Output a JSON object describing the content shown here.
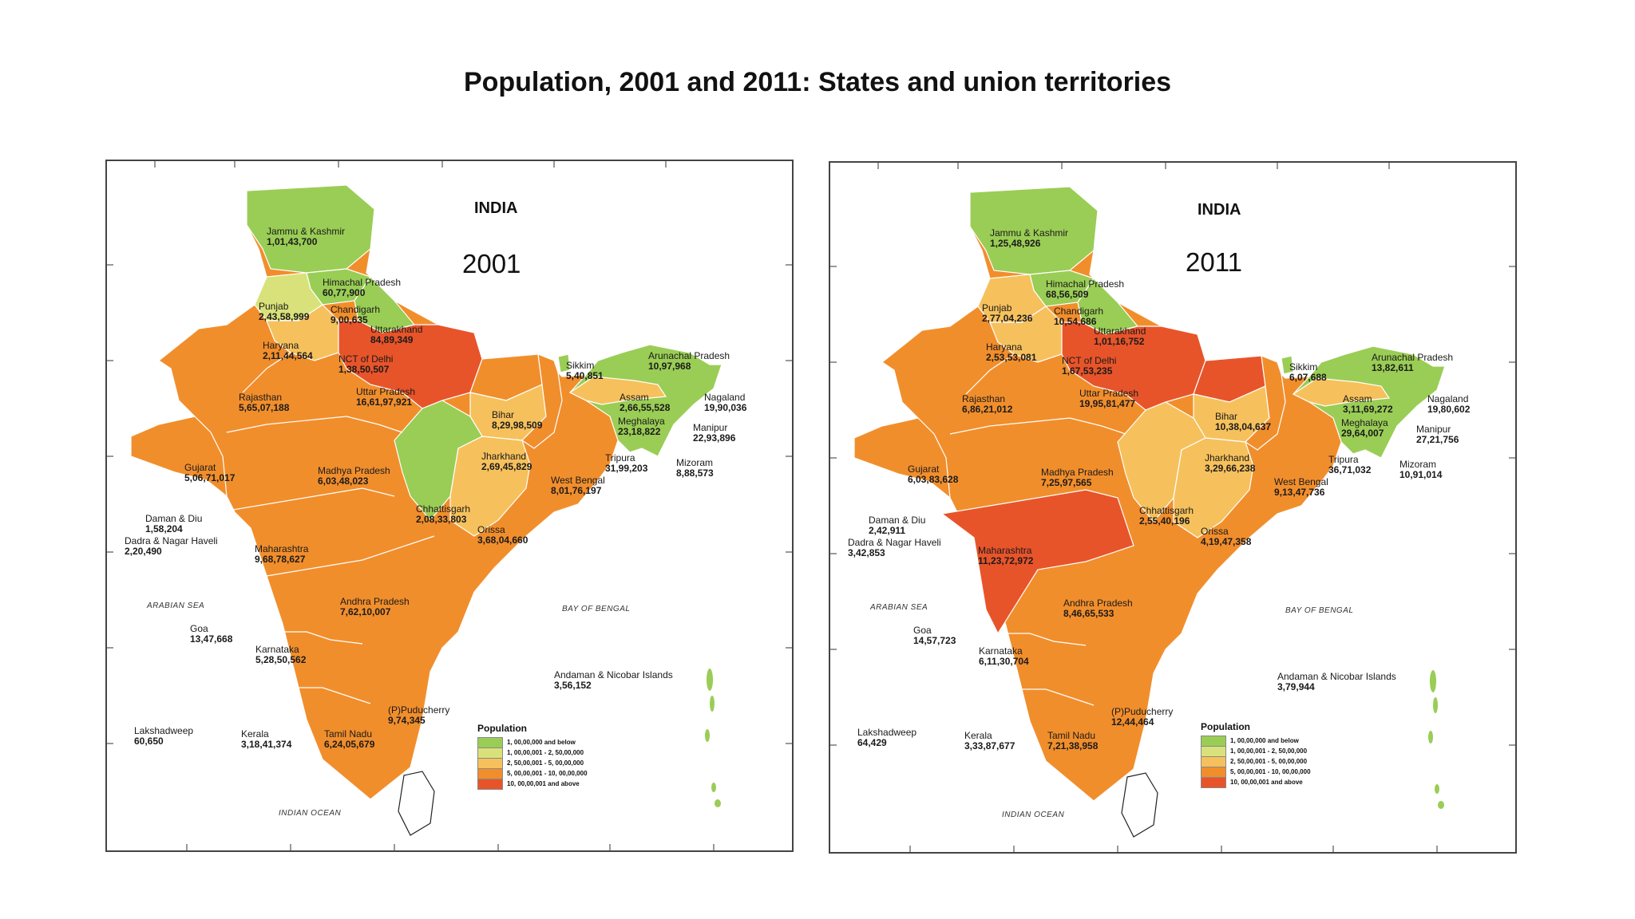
{
  "title": "Population, 2001 and 2011: States and union territories",
  "colors": {
    "level1": "#9acd55",
    "level2": "#d9e27a",
    "level3": "#f6c15c",
    "level4": "#f18e2c",
    "level5": "#e8542a",
    "border": "#ffffff",
    "frame": "#444444"
  },
  "maps": [
    {
      "heading": "INDIA",
      "year": "2001",
      "legend": {
        "title": "Population",
        "items": [
          "1, 00,00,000 and below",
          "1, 00,00,001 - 2, 50,00,000",
          "2, 50,00,001 - 5, 00,00,000",
          "5, 00,00,001 - 10, 00,00,000",
          "10, 00,00,001 and above"
        ]
      },
      "seas": [
        "ARABIAN SEA",
        "BAY OF BENGAL",
        "INDIAN OCEAN"
      ],
      "regions": [
        {
          "name": "Jammu & Kashmir",
          "value": "1,01,43,700"
        },
        {
          "name": "Himachal Pradesh",
          "value": "60,77,900"
        },
        {
          "name": "Punjab",
          "value": "2,43,58,999"
        },
        {
          "name": "Chandigarh",
          "value": "9,00,635"
        },
        {
          "name": "Uttarakhand",
          "value": "84,89,349"
        },
        {
          "name": "Haryana",
          "value": "2,11,44,564"
        },
        {
          "name": "NCT of Delhi",
          "value": "1,38,50,507"
        },
        {
          "name": "Sikkim",
          "value": "5,40,851"
        },
        {
          "name": "Arunachal Pradesh",
          "value": "10,97,968"
        },
        {
          "name": "Rajasthan",
          "value": "5,65,07,188"
        },
        {
          "name": "Uttar Pradesh",
          "value": "16,61,97,921"
        },
        {
          "name": "Assam",
          "value": "2,66,55,528"
        },
        {
          "name": "Nagaland",
          "value": "19,90,036"
        },
        {
          "name": "Bihar",
          "value": "8,29,98,509"
        },
        {
          "name": "Meghalaya",
          "value": "23,18,822"
        },
        {
          "name": "Manipur",
          "value": "22,93,896"
        },
        {
          "name": "Jharkhand",
          "value": "2,69,45,829"
        },
        {
          "name": "Tripura",
          "value": "31,99,203"
        },
        {
          "name": "Mizoram",
          "value": "8,88,573"
        },
        {
          "name": "Gujarat",
          "value": "5,06,71,017"
        },
        {
          "name": "Madhya Pradesh",
          "value": "6,03,48,023"
        },
        {
          "name": "West Bengal",
          "value": "8,01,76,197"
        },
        {
          "name": "Daman & Diu",
          "value": "1,58,204"
        },
        {
          "name": "Chhattisgarh",
          "value": "2,08,33,803"
        },
        {
          "name": "Dadra & Nagar Haveli",
          "value": "2,20,490"
        },
        {
          "name": "Orissa",
          "value": "3,68,04,660"
        },
        {
          "name": "Maharashtra",
          "value": "9,68,78,627"
        },
        {
          "name": "Andhra Pradesh",
          "value": "7,62,10,007"
        },
        {
          "name": "Goa",
          "value": "13,47,668"
        },
        {
          "name": "Karnataka",
          "value": "5,28,50,562"
        },
        {
          "name": "Andaman & Nicobar Islands",
          "value": "3,56,152"
        },
        {
          "name": "(P)Puducherry",
          "value": "9,74,345"
        },
        {
          "name": "Lakshadweep",
          "value": "60,650"
        },
        {
          "name": "Kerala",
          "value": "3,18,41,374"
        },
        {
          "name": "Tamil Nadu",
          "value": "6,24,05,679"
        }
      ]
    },
    {
      "heading": "INDIA",
      "year": "2011",
      "legend": {
        "title": "Population",
        "items": [
          "1, 00,00,000 and below",
          "1, 00,00,001 - 2, 50,00,000",
          "2, 50,00,001 - 5, 00,00,000",
          "5, 00,00,001 - 10, 00,00,000",
          "10, 00,00,001 and above"
        ]
      },
      "seas": [
        "ARABIAN SEA",
        "BAY OF BENGAL",
        "INDIAN OCEAN"
      ],
      "regions": [
        {
          "name": "Jammu & Kashmir",
          "value": "1,25,48,926"
        },
        {
          "name": "Himachal Pradesh",
          "value": "68,56,509"
        },
        {
          "name": "Punjab",
          "value": "2,77,04,236"
        },
        {
          "name": "Chandigarh",
          "value": "10,54,686"
        },
        {
          "name": "Uttarakhand",
          "value": "1,01,16,752"
        },
        {
          "name": "Haryana",
          "value": "2,53,53,081"
        },
        {
          "name": "NCT of Delhi",
          "value": "1,67,53,235"
        },
        {
          "name": "Sikkim",
          "value": "6,07,688"
        },
        {
          "name": "Arunachal Pradesh",
          "value": "13,82,611"
        },
        {
          "name": "Rajasthan",
          "value": "6,86,21,012"
        },
        {
          "name": "Uttar Pradesh",
          "value": "19,95,81,477"
        },
        {
          "name": "Assam",
          "value": "3,11,69,272"
        },
        {
          "name": "Nagaland",
          "value": "19,80,602"
        },
        {
          "name": "Bihar",
          "value": "10,38,04,637"
        },
        {
          "name": "Meghalaya",
          "value": "29,64,007"
        },
        {
          "name": "Manipur",
          "value": "27,21,756"
        },
        {
          "name": "Jharkhand",
          "value": "3,29,66,238"
        },
        {
          "name": "Tripura",
          "value": "36,71,032"
        },
        {
          "name": "Mizoram",
          "value": "10,91,014"
        },
        {
          "name": "Gujarat",
          "value": "6,03,83,628"
        },
        {
          "name": "Madhya Pradesh",
          "value": "7,25,97,565"
        },
        {
          "name": "West Bengal",
          "value": "9,13,47,736"
        },
        {
          "name": "Daman & Diu",
          "value": "2,42,911"
        },
        {
          "name": "Chhattisgarh",
          "value": "2,55,40,196"
        },
        {
          "name": "Dadra & Nagar Haveli",
          "value": "3,42,853"
        },
        {
          "name": "Orissa",
          "value": "4,19,47,358"
        },
        {
          "name": "Maharashtra",
          "value": "11,23,72,972"
        },
        {
          "name": "Andhra Pradesh",
          "value": "8,46,65,533"
        },
        {
          "name": "Goa",
          "value": "14,57,723"
        },
        {
          "name": "Karnataka",
          "value": "6,11,30,704"
        },
        {
          "name": "Andaman & Nicobar Islands",
          "value": "3,79,944"
        },
        {
          "name": "(P)Puducherry",
          "value": "12,44,464"
        },
        {
          "name": "Lakshadweep",
          "value": "64,429"
        },
        {
          "name": "Kerala",
          "value": "3,33,87,677"
        },
        {
          "name": "Tamil Nadu",
          "value": "7,21,38,958"
        }
      ]
    }
  ]
}
